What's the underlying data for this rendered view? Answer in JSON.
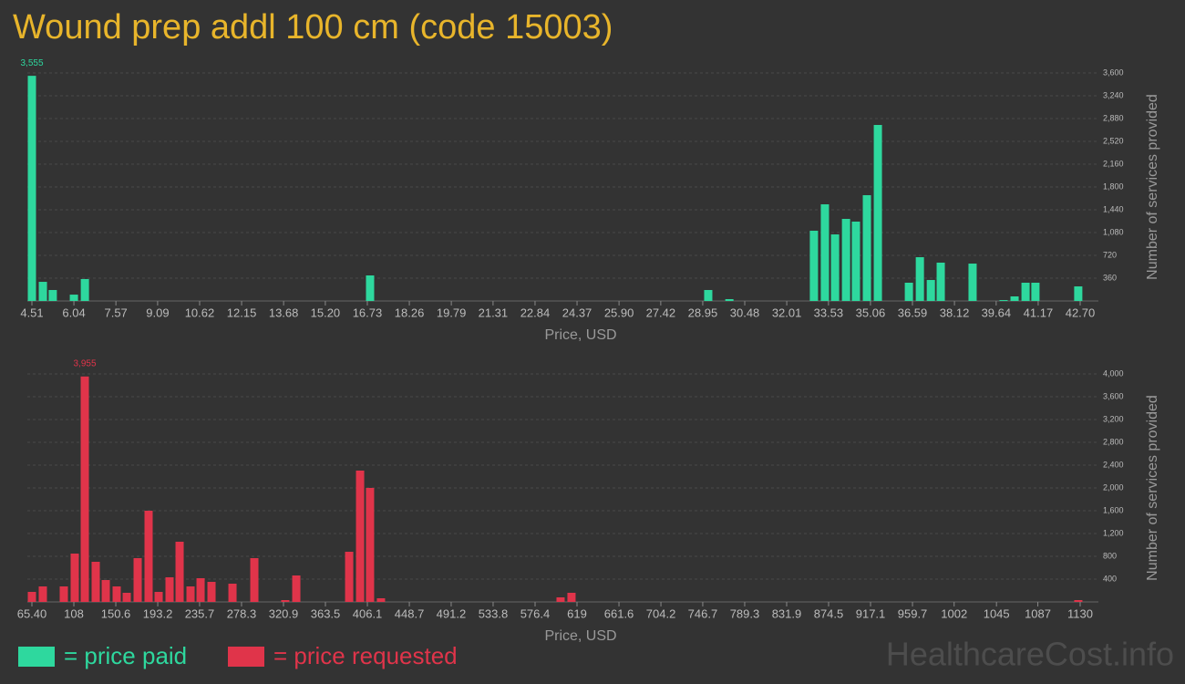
{
  "title": "Wound prep addl 100 cm (code 15003)",
  "watermark": "HealthcareCost.info",
  "chart_data": [
    {
      "type": "bar",
      "legend": "= price paid",
      "color": "#2ed89e",
      "x_label": "Price, USD",
      "y_label": "Number of services provided",
      "x": [
        4.51,
        4.91,
        5.27,
        6.04,
        6.44,
        16.83,
        29.15,
        29.92,
        33.0,
        33.4,
        33.77,
        34.17,
        34.53,
        34.93,
        35.33,
        36.46,
        36.86,
        37.26,
        37.62,
        38.78,
        39.91,
        40.31,
        40.71,
        41.07,
        42.63
      ],
      "values": [
        3555,
        302,
        173,
        100,
        346,
        403,
        173,
        29,
        1109,
        1526,
        1051,
        1296,
        1253,
        1670,
        2779,
        288,
        691,
        331,
        605,
        590,
        14,
        72,
        288,
        288,
        230
      ],
      "value_labels": [
        "3,555",
        null,
        null,
        null,
        null,
        null,
        null,
        null,
        null,
        null,
        null,
        null,
        null,
        null,
        null,
        null,
        null,
        null,
        null,
        null,
        null,
        null,
        null,
        null,
        null
      ],
      "xlim": [
        4.51,
        42.7
      ],
      "xticks": [
        4.51,
        6.04,
        7.57,
        9.09,
        10.62,
        12.15,
        13.68,
        {
          "value": 15.2,
          "label": "15.20"
        },
        16.73,
        18.26,
        19.79,
        21.31,
        22.84,
        24.37,
        {
          "value": 25.9,
          "label": "25.90"
        },
        27.42,
        28.95,
        30.48,
        32.01,
        33.53,
        35.06,
        36.59,
        38.12,
        39.64,
        41.17,
        {
          "value": 42.7,
          "label": "42.70"
        }
      ],
      "ylim": [
        0,
        3600
      ],
      "yticks": [
        360,
        720,
        {
          "value": 1080,
          "label": "1,080"
        },
        {
          "value": 1440,
          "label": "1,440"
        },
        {
          "value": 1800,
          "label": "1,800"
        },
        {
          "value": 2160,
          "label": "2,160"
        },
        {
          "value": 2520,
          "label": "2,520"
        },
        {
          "value": 2880,
          "label": "2,880"
        },
        {
          "value": 3240,
          "label": "3,240"
        },
        {
          "value": 3600,
          "label": "3,600"
        }
      ],
      "grid": true
    },
    {
      "type": "bar",
      "legend": "= price requested",
      "color": "#e0344a",
      "x_label": "Price, USD",
      "y_label": "Number of services provided",
      "x": [
        65.4,
        76.5,
        97.8,
        108.9,
        119.1,
        130.2,
        140.4,
        151.5,
        161.7,
        172.8,
        183.9,
        194.1,
        205.2,
        215.4,
        226.5,
        236.7,
        247.8,
        269.1,
        291.3,
        322.7,
        333.9,
        387.6,
        398.7,
        408.8,
        419.9,
        602.3,
        613.4,
        1128.1
      ],
      "values": [
        176,
        272,
        272,
        848,
        3955,
        704,
        384,
        272,
        160,
        768,
        1600,
        176,
        432,
        1056,
        272,
        416,
        352,
        320,
        768,
        32,
        464,
        880,
        2304,
        2000,
        64,
        80,
        160,
        32
      ],
      "value_labels": [
        null,
        null,
        null,
        null,
        "3,955",
        null,
        null,
        null,
        null,
        null,
        null,
        null,
        null,
        null,
        null,
        null,
        null,
        null,
        null,
        null,
        null,
        null,
        null,
        null,
        null,
        null,
        null,
        null
      ],
      "xlim": [
        65.4,
        1130
      ],
      "xticks": [
        {
          "value": 65.4,
          "label": "65.40"
        },
        108,
        150.6,
        193.2,
        235.7,
        278.3,
        320.9,
        363.5,
        406.1,
        448.7,
        491.2,
        533.8,
        576.4,
        619,
        661.6,
        704.2,
        746.7,
        789.3,
        831.9,
        874.5,
        917.1,
        959.7,
        1002,
        1045,
        1087,
        1130
      ],
      "ylim": [
        0,
        4000
      ],
      "yticks": [
        400,
        800,
        {
          "value": 1200,
          "label": "1,200"
        },
        {
          "value": 1600,
          "label": "1,600"
        },
        {
          "value": 2000,
          "label": "2,000"
        },
        {
          "value": 2400,
          "label": "2,400"
        },
        {
          "value": 2800,
          "label": "2,800"
        },
        {
          "value": 3200,
          "label": "3,200"
        },
        {
          "value": 3600,
          "label": "3,600"
        },
        {
          "value": 4000,
          "label": "4,000"
        }
      ],
      "grid": true
    }
  ]
}
